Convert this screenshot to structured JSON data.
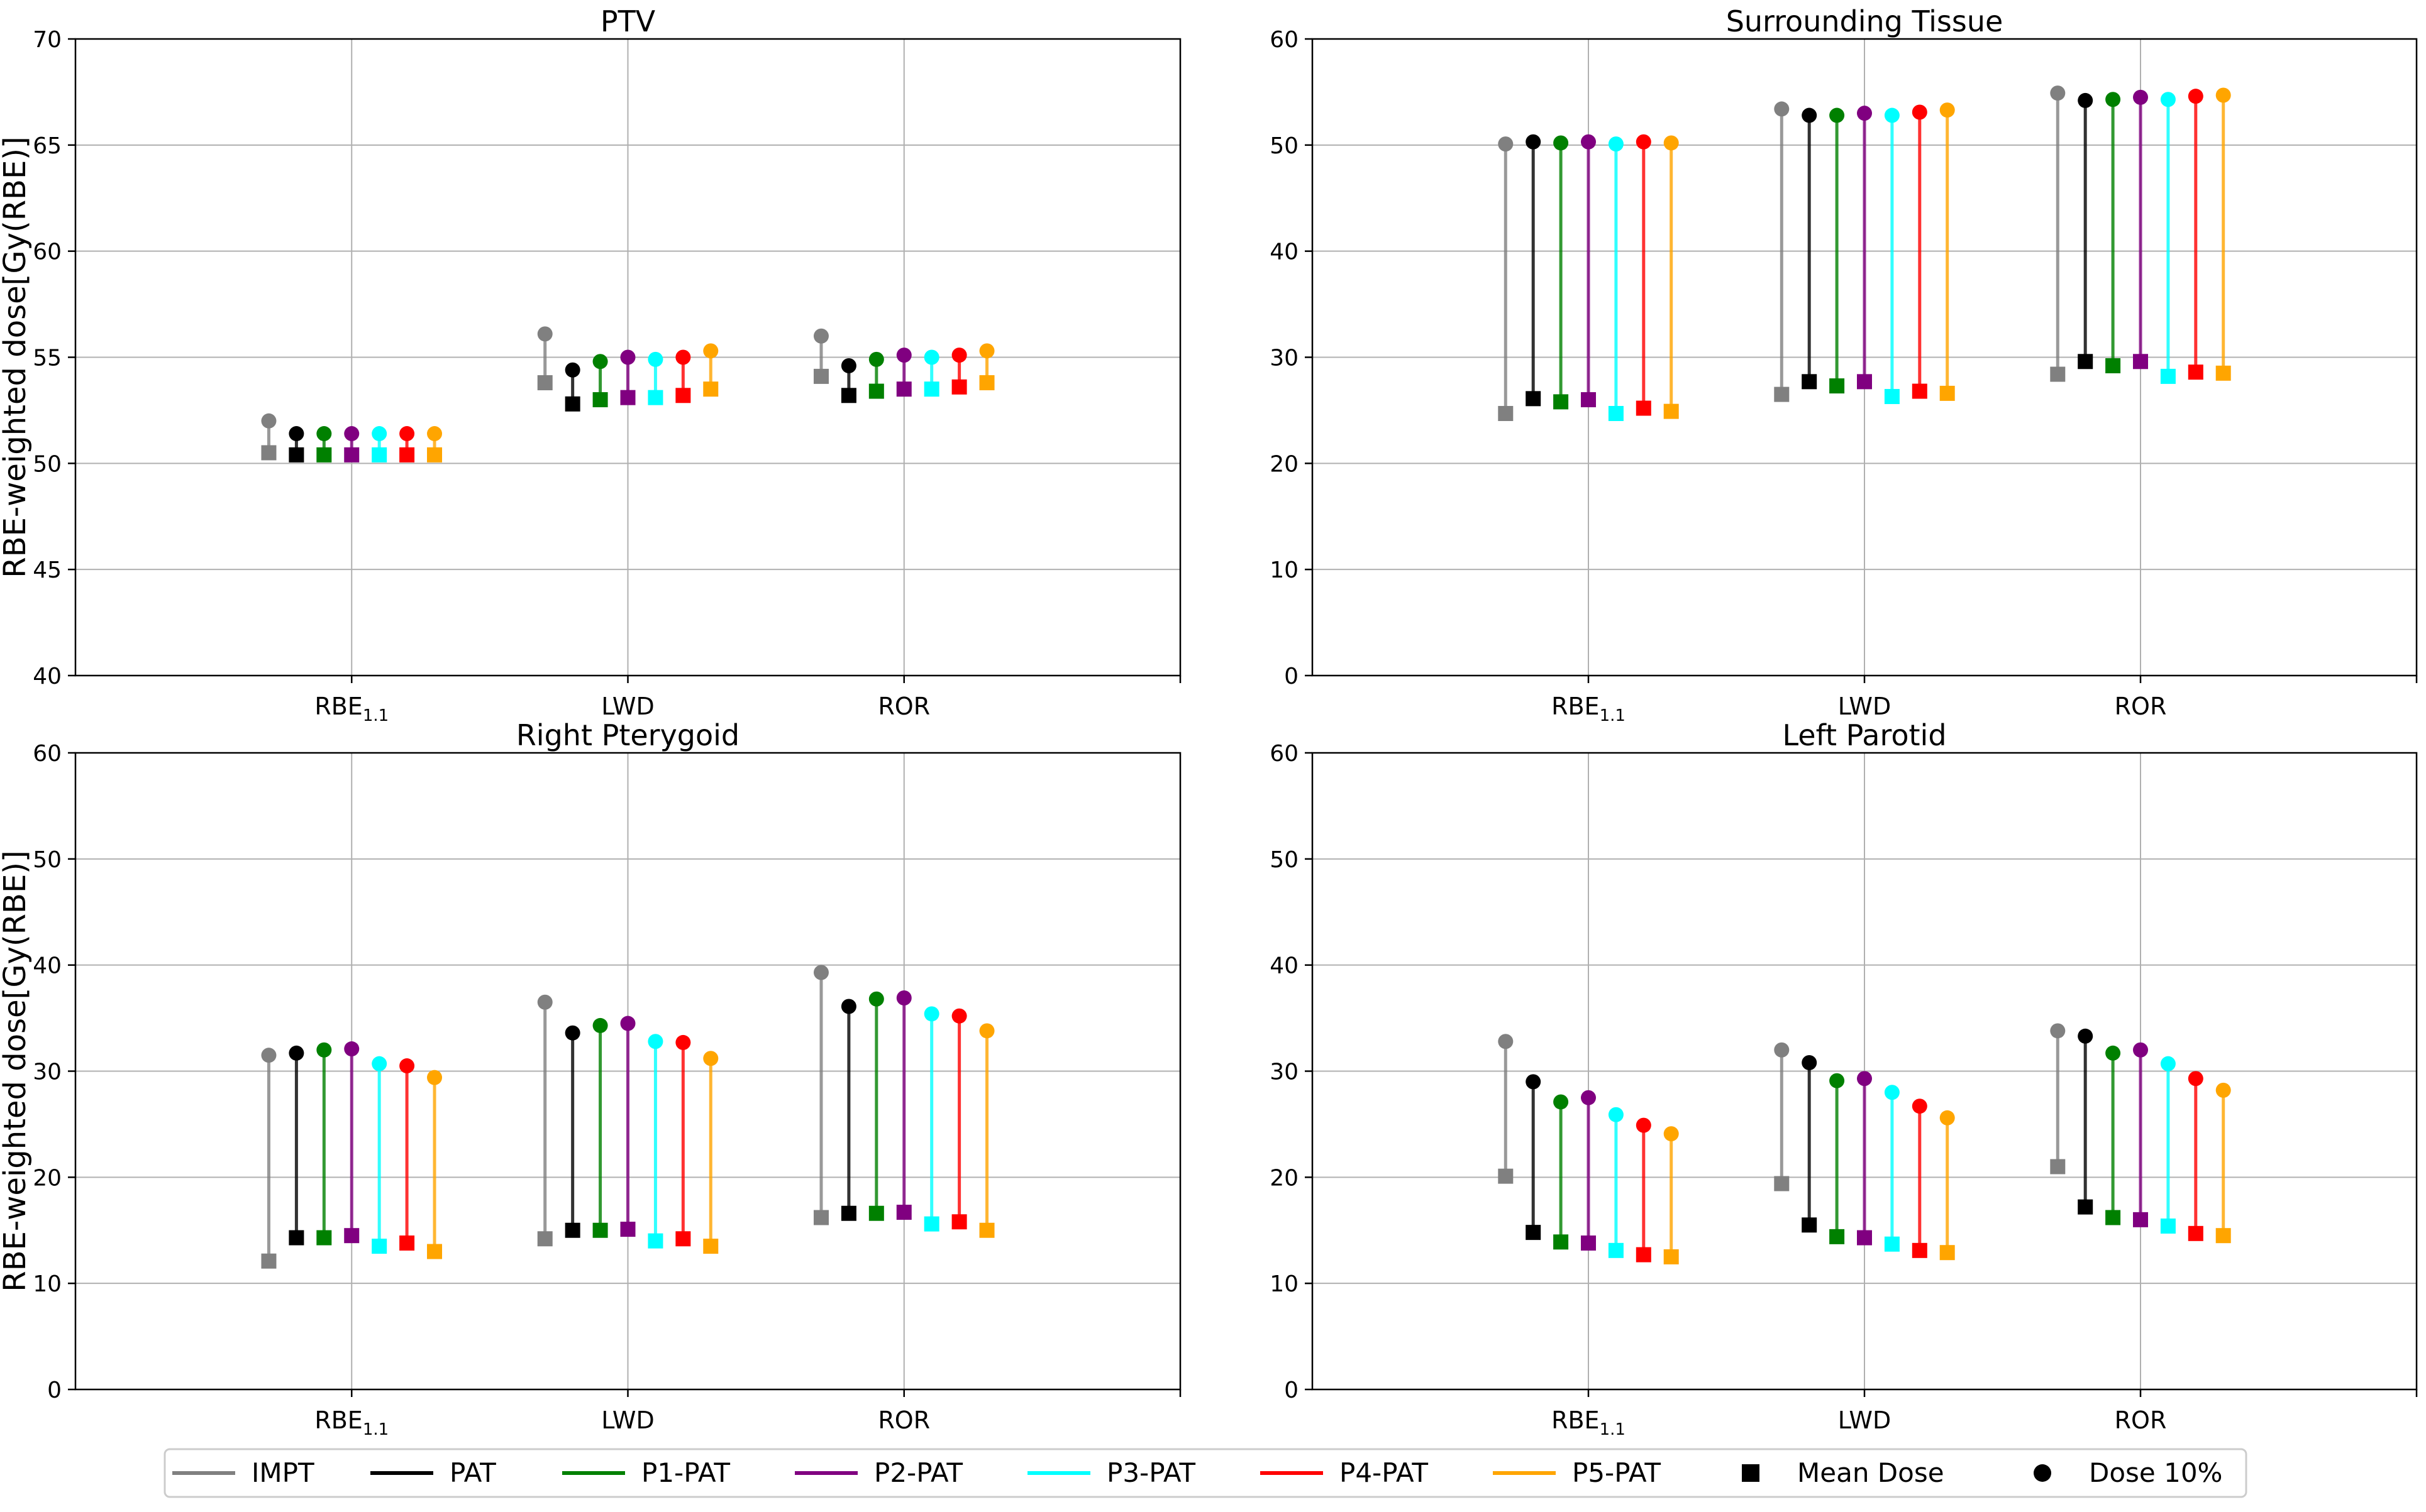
{
  "ylabel": "RBE-weighted dose[Gy(RBE)]",
  "categories": [
    {
      "base": "RBE",
      "sub": "1.1"
    },
    {
      "base": "LWD",
      "sub": ""
    },
    {
      "base": "ROR",
      "sub": ""
    }
  ],
  "colors": {
    "IMPT": "#808080",
    "PAT": "#000000",
    "P1-PAT": "#008000",
    "P2-PAT": "#800080",
    "P3-PAT": "#00ffff",
    "P4-PAT": "#ff0000",
    "P5-PAT": "#ffa500"
  },
  "legend": {
    "series": [
      "IMPT",
      "PAT",
      "P1-PAT",
      "P2-PAT",
      "P3-PAT",
      "P4-PAT",
      "P5-PAT"
    ],
    "mean_label": "Mean Dose",
    "d10_label": "Dose 10%"
  },
  "chart_data": [
    {
      "type": "scatter",
      "title": "PTV",
      "ylim": [
        40,
        70
      ],
      "yticks": [
        40,
        45,
        50,
        55,
        60,
        65,
        70
      ],
      "series_names": [
        "IMPT",
        "PAT",
        "P1-PAT",
        "P2-PAT",
        "P3-PAT",
        "P4-PAT",
        "P5-PAT"
      ],
      "mean_dose": [
        [
          50.5,
          50.4,
          50.4,
          50.4,
          50.4,
          50.4,
          50.4
        ],
        [
          53.8,
          52.8,
          53.0,
          53.1,
          53.1,
          53.2,
          53.5
        ],
        [
          54.1,
          53.2,
          53.4,
          53.5,
          53.5,
          53.6,
          53.8
        ]
      ],
      "dose_10": [
        [
          52.0,
          51.4,
          51.4,
          51.4,
          51.4,
          51.4,
          51.4
        ],
        [
          56.1,
          54.4,
          54.8,
          55.0,
          54.9,
          55.0,
          55.3
        ],
        [
          56.0,
          54.6,
          54.9,
          55.1,
          55.0,
          55.1,
          55.3
        ]
      ]
    },
    {
      "type": "scatter",
      "title": "Surrounding Tissue",
      "ylim": [
        0,
        60
      ],
      "yticks": [
        0,
        10,
        20,
        30,
        40,
        50,
        60
      ],
      "series_names": [
        "IMPT",
        "PAT",
        "P1-PAT",
        "P2-PAT",
        "P3-PAT",
        "P4-PAT",
        "P5-PAT"
      ],
      "mean_dose": [
        [
          24.7,
          26.1,
          25.8,
          26.0,
          24.7,
          25.2,
          24.9
        ],
        [
          26.5,
          27.7,
          27.3,
          27.7,
          26.3,
          26.8,
          26.6
        ],
        [
          28.4,
          29.6,
          29.2,
          29.6,
          28.2,
          28.6,
          28.5
        ]
      ],
      "dose_10": [
        [
          50.1,
          50.3,
          50.2,
          50.3,
          50.1,
          50.3,
          50.2
        ],
        [
          53.4,
          52.8,
          52.8,
          53.0,
          52.8,
          53.1,
          53.3
        ],
        [
          54.9,
          54.2,
          54.3,
          54.5,
          54.3,
          54.6,
          54.7
        ]
      ]
    },
    {
      "type": "scatter",
      "title": "Right Pterygoid",
      "ylim": [
        0,
        60
      ],
      "yticks": [
        0,
        10,
        20,
        30,
        40,
        50,
        60
      ],
      "series_names": [
        "IMPT",
        "PAT",
        "P1-PAT",
        "P2-PAT",
        "P3-PAT",
        "P4-PAT",
        "P5-PAT"
      ],
      "mean_dose": [
        [
          12.1,
          14.3,
          14.3,
          14.5,
          13.5,
          13.8,
          13.0
        ],
        [
          14.2,
          15.0,
          15.0,
          15.1,
          14.0,
          14.2,
          13.5
        ],
        [
          16.2,
          16.6,
          16.6,
          16.7,
          15.6,
          15.8,
          15.0
        ]
      ],
      "dose_10": [
        [
          31.5,
          31.7,
          32.0,
          32.1,
          30.7,
          30.5,
          29.4
        ],
        [
          36.5,
          33.6,
          34.3,
          34.5,
          32.8,
          32.7,
          31.2
        ],
        [
          39.3,
          36.1,
          36.8,
          36.9,
          35.4,
          35.2,
          33.8
        ]
      ]
    },
    {
      "type": "scatter",
      "title": "Left Parotid",
      "ylim": [
        0,
        60
      ],
      "yticks": [
        0,
        10,
        20,
        30,
        40,
        50,
        60
      ],
      "series_names": [
        "IMPT",
        "PAT",
        "P1-PAT",
        "P2-PAT",
        "P3-PAT",
        "P4-PAT",
        "P5-PAT"
      ],
      "mean_dose": [
        [
          20.1,
          14.8,
          13.9,
          13.8,
          13.1,
          12.7,
          12.5
        ],
        [
          19.4,
          15.5,
          14.4,
          14.3,
          13.7,
          13.1,
          12.9
        ],
        [
          21.0,
          17.2,
          16.2,
          16.0,
          15.4,
          14.7,
          14.5
        ]
      ],
      "dose_10": [
        [
          32.8,
          29.0,
          27.1,
          27.5,
          25.9,
          24.9,
          24.1
        ],
        [
          32.0,
          30.8,
          29.1,
          29.3,
          28.0,
          26.7,
          25.6
        ],
        [
          33.8,
          33.3,
          31.7,
          32.0,
          30.7,
          29.3,
          28.2
        ]
      ]
    }
  ]
}
